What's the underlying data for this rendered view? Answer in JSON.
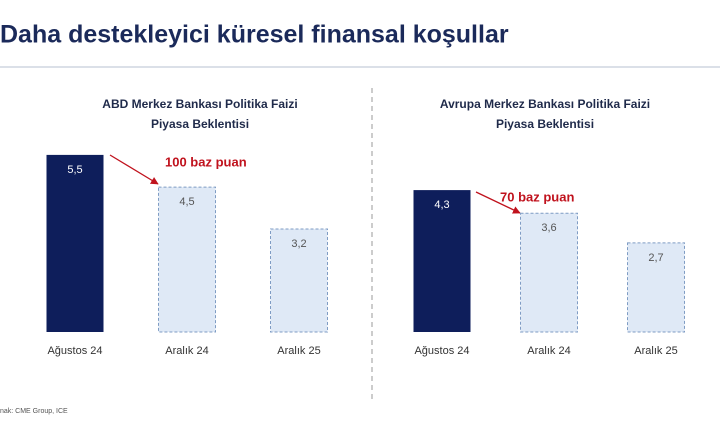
{
  "title": "Daha destekleyici küresel finansal koşullar",
  "source": "nak: CME Group, ICE",
  "chart_data": [
    {
      "type": "bar",
      "title": [
        "ABD Merkez Bankası Politika Faizi",
        "Piyasa Beklentisi"
      ],
      "categories": [
        "Ağustos 24",
        "Aralık 24",
        "Aralık 25"
      ],
      "values": [
        5.5,
        4.5,
        3.2
      ],
      "value_labels": [
        "5,5",
        "4,5",
        "3,2"
      ],
      "colors": [
        "#0e1e5b",
        "#dfe9f6",
        "#dfe9f6"
      ],
      "annotation": "100 baz puan"
    },
    {
      "type": "bar",
      "title": [
        "Avrupa Merkez Bankası Politika Faizi",
        "Piyasa Beklentisi"
      ],
      "categories": [
        "Ağustos 24",
        "Aralık 24",
        "Aralık 25"
      ],
      "values": [
        4.3,
        3.6,
        2.7
      ],
      "value_labels": [
        "4,3",
        "3,6",
        "2,7"
      ],
      "colors": [
        "#0e1e5b",
        "#dfe9f6",
        "#dfe9f6"
      ],
      "annotation": "70 baz puan"
    }
  ]
}
